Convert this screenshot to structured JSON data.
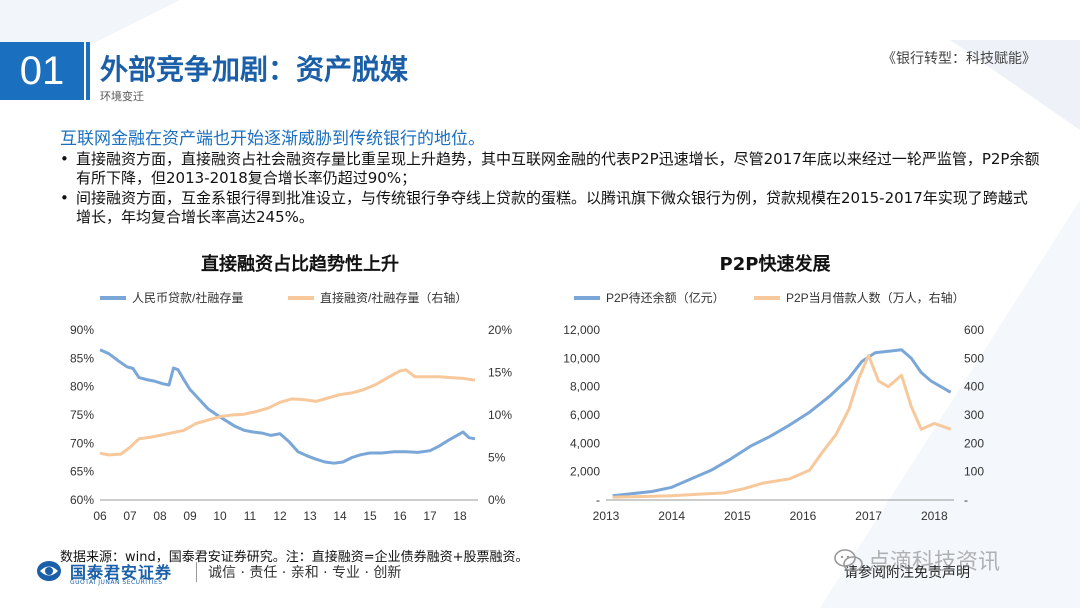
{
  "header": {
    "section_number": "01",
    "title": "外部竞争加剧：资产脱媒",
    "subtitle": "环境变迁",
    "book_title": "《银行转型：科技赋能》"
  },
  "body": {
    "lead": "互联网金融在资产端也开始逐渐威胁到传统银行的地位。",
    "bullets": [
      "直接融资方面，直接融资占社会融资存量比重呈现上升趋势，其中互联网金融的代表P2P迅速增长，尽管2017年底以来经过一轮严监管，P2P余额有所下降，但2013-2018复合增长率仍超过90%；",
      "间接融资方面，互金系银行得到批准设立，与传统银行争夺线上贷款的蛋糕。以腾讯旗下微众银行为例，贷款规模在2015-2017年实现了跨越式增长，年均复合增长率高达245%。"
    ]
  },
  "footer": {
    "source": "数据来源：wind，国泰君安证券研究。注：直接融资=企业债券融资+股票融资。",
    "logo_cn": "国泰君安证券",
    "logo_en": "GUOTAI JUNAN SECURITIES",
    "motto": "诚信 · 责任 · 亲和 · 专业 · 创新",
    "disclaimer": "请参阅附注免责声明",
    "watermark": "点滴科技资讯"
  },
  "colors": {
    "accent": "#1a6fbf",
    "series_blue": "#7aa6d8",
    "series_orange": "#f7c89b"
  },
  "chart_data": [
    {
      "type": "line",
      "title": "直接融资占比趋势性上升",
      "x_tick_labels": [
        "06",
        "07",
        "08",
        "09",
        "10",
        "11",
        "12",
        "13",
        "14",
        "15",
        "16",
        "17",
        "18"
      ],
      "xlim": [
        2006,
        2018.6
      ],
      "y_left": {
        "ylim": [
          60,
          90
        ],
        "tick_labels": [
          "90%",
          "85%",
          "80%",
          "75%",
          "70%",
          "65%",
          "60%"
        ],
        "ticks": [
          90,
          85,
          80,
          75,
          70,
          65,
          60
        ]
      },
      "y_right": {
        "ylim": [
          0,
          20
        ],
        "tick_labels": [
          "20%",
          "15%",
          "10%",
          "5%",
          "0%"
        ],
        "ticks": [
          20,
          15,
          10,
          5,
          0
        ]
      },
      "series": [
        {
          "name": "人民币贷款/社融存量",
          "axis": "left",
          "color": "#7aa6d8",
          "points": [
            [
              2006.0,
              86.5
            ],
            [
              2006.3,
              85.8
            ],
            [
              2006.6,
              84.6
            ],
            [
              2006.9,
              83.5
            ],
            [
              2007.1,
              83.2
            ],
            [
              2007.3,
              81.6
            ],
            [
              2007.6,
              81.2
            ],
            [
              2007.8,
              81.0
            ],
            [
              2008.1,
              80.5
            ],
            [
              2008.3,
              80.3
            ],
            [
              2008.45,
              83.3
            ],
            [
              2008.6,
              83.0
            ],
            [
              2008.8,
              81.2
            ],
            [
              2009.0,
              79.5
            ],
            [
              2009.3,
              77.8
            ],
            [
              2009.6,
              76.1
            ],
            [
              2009.9,
              75.0
            ],
            [
              2010.2,
              74.0
            ],
            [
              2010.5,
              73.0
            ],
            [
              2010.8,
              72.3
            ],
            [
              2011.1,
              72.0
            ],
            [
              2011.4,
              71.8
            ],
            [
              2011.7,
              71.4
            ],
            [
              2012.0,
              71.7
            ],
            [
              2012.3,
              70.3
            ],
            [
              2012.6,
              68.5
            ],
            [
              2012.9,
              67.8
            ],
            [
              2013.2,
              67.2
            ],
            [
              2013.5,
              66.7
            ],
            [
              2013.8,
              66.5
            ],
            [
              2014.1,
              66.7
            ],
            [
              2014.4,
              67.5
            ],
            [
              2014.7,
              68.0
            ],
            [
              2015.0,
              68.3
            ],
            [
              2015.4,
              68.3
            ],
            [
              2015.8,
              68.5
            ],
            [
              2016.2,
              68.5
            ],
            [
              2016.6,
              68.4
            ],
            [
              2017.0,
              68.7
            ],
            [
              2017.3,
              69.5
            ],
            [
              2017.6,
              70.5
            ],
            [
              2017.9,
              71.4
            ],
            [
              2018.1,
              72.0
            ],
            [
              2018.3,
              71.0
            ],
            [
              2018.5,
              70.8
            ]
          ]
        },
        {
          "name": "直接融资/社融存量（右轴）",
          "axis": "right",
          "color": "#f7c89b",
          "points": [
            [
              2006.0,
              5.5
            ],
            [
              2006.3,
              5.3
            ],
            [
              2006.7,
              5.4
            ],
            [
              2007.0,
              6.2
            ],
            [
              2007.3,
              7.2
            ],
            [
              2007.7,
              7.4
            ],
            [
              2008.0,
              7.6
            ],
            [
              2008.4,
              7.9
            ],
            [
              2008.8,
              8.2
            ],
            [
              2009.2,
              9.0
            ],
            [
              2009.6,
              9.4
            ],
            [
              2010.0,
              9.8
            ],
            [
              2010.4,
              10.0
            ],
            [
              2010.8,
              10.1
            ],
            [
              2011.2,
              10.4
            ],
            [
              2011.6,
              10.8
            ],
            [
              2012.0,
              11.5
            ],
            [
              2012.4,
              11.9
            ],
            [
              2012.8,
              11.8
            ],
            [
              2013.2,
              11.6
            ],
            [
              2013.6,
              12.0
            ],
            [
              2014.0,
              12.4
            ],
            [
              2014.4,
              12.6
            ],
            [
              2014.8,
              13.0
            ],
            [
              2015.2,
              13.6
            ],
            [
              2015.6,
              14.4
            ],
            [
              2016.0,
              15.2
            ],
            [
              2016.2,
              15.3
            ],
            [
              2016.5,
              14.5
            ],
            [
              2016.9,
              14.5
            ],
            [
              2017.3,
              14.5
            ],
            [
              2017.7,
              14.4
            ],
            [
              2018.1,
              14.3
            ],
            [
              2018.5,
              14.1
            ]
          ]
        }
      ]
    },
    {
      "type": "line",
      "title": "P2P快速发展",
      "x_tick_labels": [
        "2013",
        "2014",
        "2015",
        "2016",
        "2017",
        "2018"
      ],
      "xlim": [
        2013,
        2018.3
      ],
      "y_left": {
        "ylim": [
          0,
          12000
        ],
        "tick_labels": [
          "12,000",
          "10,000",
          "8,000",
          "6,000",
          "4,000",
          "2,000",
          "-"
        ],
        "ticks": [
          12000,
          10000,
          8000,
          6000,
          4000,
          2000,
          0
        ]
      },
      "y_right": {
        "ylim": [
          0,
          600
        ],
        "tick_labels": [
          "600",
          "500",
          "400",
          "300",
          "200",
          "100",
          "-"
        ],
        "ticks": [
          600,
          500,
          400,
          300,
          200,
          100,
          0
        ]
      },
      "series": [
        {
          "name": "P2P待还余额（亿元）",
          "axis": "left",
          "color": "#7aa6d8",
          "points": [
            [
              2013.1,
              300
            ],
            [
              2013.4,
              450
            ],
            [
              2013.7,
              600
            ],
            [
              2014.0,
              900
            ],
            [
              2014.3,
              1500
            ],
            [
              2014.6,
              2100
            ],
            [
              2014.9,
              2900
            ],
            [
              2015.2,
              3800
            ],
            [
              2015.5,
              4500
            ],
            [
              2015.8,
              5300
            ],
            [
              2016.1,
              6200
            ],
            [
              2016.4,
              7300
            ],
            [
              2016.7,
              8600
            ],
            [
              2016.9,
              9800
            ],
            [
              2017.1,
              10400
            ],
            [
              2017.3,
              10500
            ],
            [
              2017.5,
              10600
            ],
            [
              2017.65,
              10000
            ],
            [
              2017.8,
              9000
            ],
            [
              2017.95,
              8400
            ],
            [
              2018.1,
              8000
            ],
            [
              2018.25,
              7600
            ]
          ]
        },
        {
          "name": "P2P当月借款人数（万人，右轴）",
          "axis": "right",
          "color": "#f7c89b",
          "points": [
            [
              2013.1,
              10
            ],
            [
              2013.5,
              12
            ],
            [
              2014.0,
              15
            ],
            [
              2014.4,
              20
            ],
            [
              2014.8,
              25
            ],
            [
              2015.1,
              40
            ],
            [
              2015.4,
              60
            ],
            [
              2015.8,
              75
            ],
            [
              2016.1,
              105
            ],
            [
              2016.3,
              170
            ],
            [
              2016.5,
              230
            ],
            [
              2016.7,
              320
            ],
            [
              2016.85,
              430
            ],
            [
              2017.0,
              510
            ],
            [
              2017.15,
              420
            ],
            [
              2017.3,
              400
            ],
            [
              2017.5,
              440
            ],
            [
              2017.65,
              330
            ],
            [
              2017.8,
              250
            ],
            [
              2018.0,
              270
            ],
            [
              2018.25,
              250
            ]
          ]
        }
      ]
    }
  ]
}
